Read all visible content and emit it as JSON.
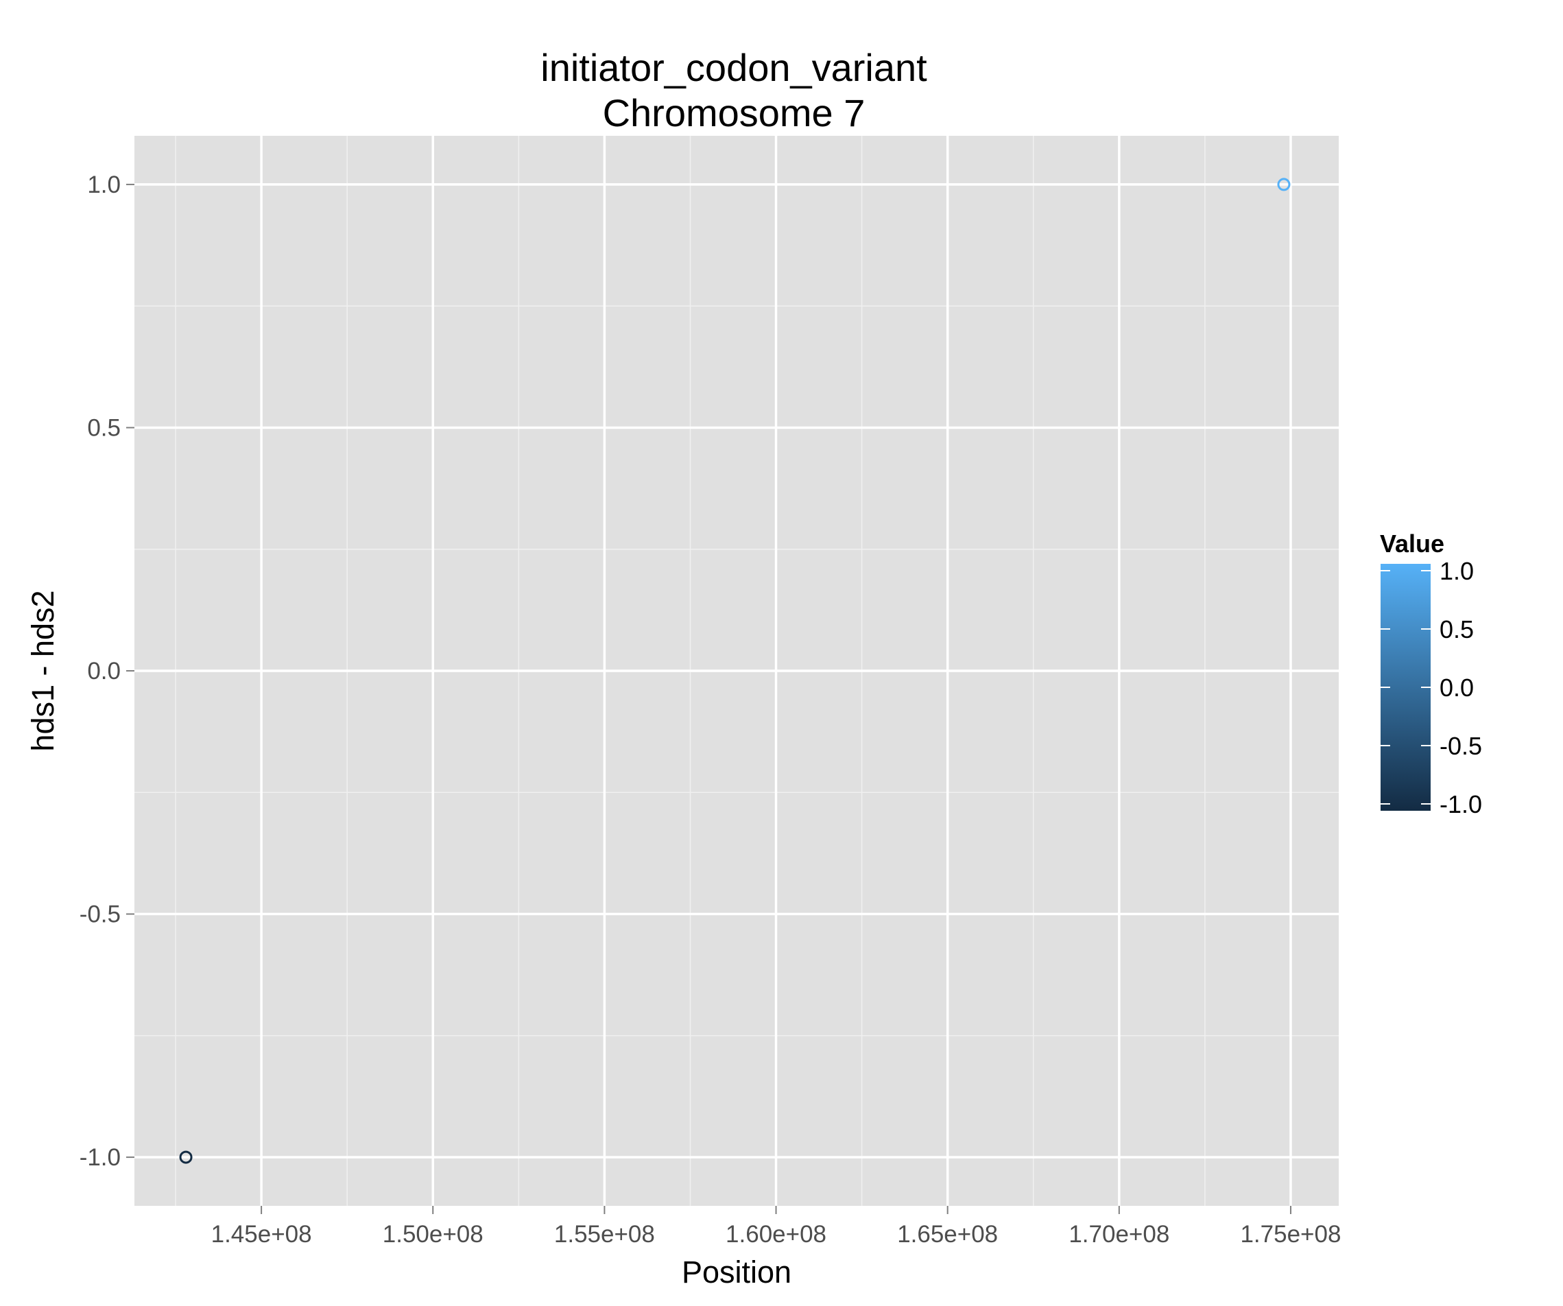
{
  "chart_data": {
    "type": "scatter",
    "title": "initiator_codon_variant",
    "subtitle": "Chromosome 7",
    "xlabel": "Position",
    "ylabel": "hds1 - hds2",
    "xlim": [
      141300000,
      176400000
    ],
    "ylim": [
      -1.1,
      1.1
    ],
    "x_ticks": [
      145000000,
      150000000,
      155000000,
      160000000,
      165000000,
      170000000,
      175000000
    ],
    "x_tick_labels": [
      "1.45e+08",
      "1.50e+08",
      "1.55e+08",
      "1.60e+08",
      "1.65e+08",
      "1.70e+08",
      "1.75e+08"
    ],
    "y_ticks": [
      -1.0,
      -0.5,
      0.0,
      0.5,
      1.0
    ],
    "y_tick_labels": [
      "-1.0",
      "-0.5",
      "0.0",
      "0.5",
      "1.0"
    ],
    "grid": true,
    "panel_background": "#e0e0e0",
    "points": [
      {
        "x": 142800000,
        "y": -1.0,
        "value": -1.0
      },
      {
        "x": 174800000,
        "y": 1.0,
        "value": 1.0
      }
    ],
    "legend": {
      "title": "Value",
      "placement": "right",
      "range": [
        -1.0,
        1.0
      ],
      "ticks": [
        1.0,
        0.5,
        0.0,
        -0.5,
        -1.0
      ],
      "tick_labels": [
        "1.0",
        "0.5",
        "0.0",
        "-0.5",
        "-1.0"
      ],
      "low_color": "#132b43",
      "high_color": "#56b1f7"
    }
  }
}
